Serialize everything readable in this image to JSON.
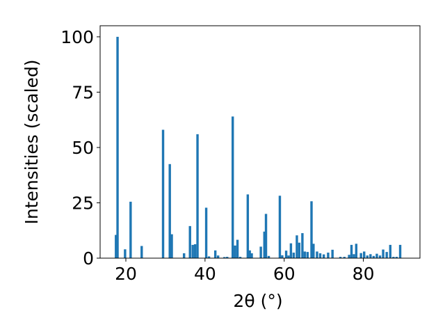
{
  "chart_data": {
    "type": "bar",
    "xlabel": "2θ (°)",
    "ylabel": "Intensities (scaled)",
    "xlim": [
      13.5,
      94.3
    ],
    "ylim": [
      0,
      105
    ],
    "bar_width_deg": 0.6,
    "bar_color": "#1f77b4",
    "x_ticks": [
      20,
      40,
      60,
      80
    ],
    "y_ticks": [
      0,
      25,
      50,
      75,
      100
    ],
    "x_tick_labels": [
      "20",
      "40",
      "60",
      "80"
    ],
    "y_tick_labels": [
      "0",
      "25",
      "50",
      "75",
      "100"
    ],
    "grid": false,
    "bars": [
      {
        "x": 17.5,
        "y": 10.5
      },
      {
        "x": 17.9,
        "y": 100
      },
      {
        "x": 19.8,
        "y": 4
      },
      {
        "x": 21.2,
        "y": 25.5
      },
      {
        "x": 24.0,
        "y": 5.5
      },
      {
        "x": 29.4,
        "y": 58
      },
      {
        "x": 31.1,
        "y": 42.5
      },
      {
        "x": 31.6,
        "y": 10.8
      },
      {
        "x": 34.7,
        "y": 2.2
      },
      {
        "x": 36.2,
        "y": 14.5
      },
      {
        "x": 36.9,
        "y": 6
      },
      {
        "x": 37.5,
        "y": 6.3
      },
      {
        "x": 38.1,
        "y": 56
      },
      {
        "x": 40.3,
        "y": 22.8
      },
      {
        "x": 41.0,
        "y": 0.8
      },
      {
        "x": 42.6,
        "y": 3.5
      },
      {
        "x": 43.3,
        "y": 1.2
      },
      {
        "x": 44.9,
        "y": 0.5
      },
      {
        "x": 45.6,
        "y": 0.6
      },
      {
        "x": 47.0,
        "y": 64
      },
      {
        "x": 47.6,
        "y": 5.7
      },
      {
        "x": 48.2,
        "y": 8.3
      },
      {
        "x": 48.9,
        "y": 0.6
      },
      {
        "x": 50.8,
        "y": 28.8
      },
      {
        "x": 51.3,
        "y": 3.5
      },
      {
        "x": 51.8,
        "y": 2.2
      },
      {
        "x": 54.1,
        "y": 5.2
      },
      {
        "x": 55.0,
        "y": 12
      },
      {
        "x": 55.4,
        "y": 20
      },
      {
        "x": 56.1,
        "y": 1
      },
      {
        "x": 58.9,
        "y": 28.2
      },
      {
        "x": 59.5,
        "y": 1.3
      },
      {
        "x": 60.5,
        "y": 3.4
      },
      {
        "x": 61.1,
        "y": 1.2
      },
      {
        "x": 61.7,
        "y": 6.7
      },
      {
        "x": 62.4,
        "y": 2.5
      },
      {
        "x": 63.2,
        "y": 10.3
      },
      {
        "x": 63.8,
        "y": 7
      },
      {
        "x": 64.6,
        "y": 11.3
      },
      {
        "x": 65.2,
        "y": 3
      },
      {
        "x": 65.9,
        "y": 2.8
      },
      {
        "x": 66.9,
        "y": 25.7
      },
      {
        "x": 67.4,
        "y": 6.5
      },
      {
        "x": 68.3,
        "y": 3
      },
      {
        "x": 69.1,
        "y": 2.2
      },
      {
        "x": 70.0,
        "y": 1.7
      },
      {
        "x": 71.1,
        "y": 2.5
      },
      {
        "x": 72.2,
        "y": 3.8
      },
      {
        "x": 74.2,
        "y": 0.6
      },
      {
        "x": 75.2,
        "y": 0.6
      },
      {
        "x": 76.4,
        "y": 1.5
      },
      {
        "x": 77.0,
        "y": 6
      },
      {
        "x": 77.6,
        "y": 1.8
      },
      {
        "x": 78.2,
        "y": 6.5
      },
      {
        "x": 79.4,
        "y": 2.3
      },
      {
        "x": 80.2,
        "y": 3
      },
      {
        "x": 81.0,
        "y": 1.2
      },
      {
        "x": 81.8,
        "y": 1.8
      },
      {
        "x": 82.6,
        "y": 1
      },
      {
        "x": 83.4,
        "y": 2
      },
      {
        "x": 84.2,
        "y": 1.2
      },
      {
        "x": 85.0,
        "y": 3.9
      },
      {
        "x": 85.9,
        "y": 2.8
      },
      {
        "x": 86.8,
        "y": 6
      },
      {
        "x": 87.6,
        "y": 0.6
      },
      {
        "x": 88.4,
        "y": 0.6
      },
      {
        "x": 89.3,
        "y": 6
      }
    ]
  }
}
